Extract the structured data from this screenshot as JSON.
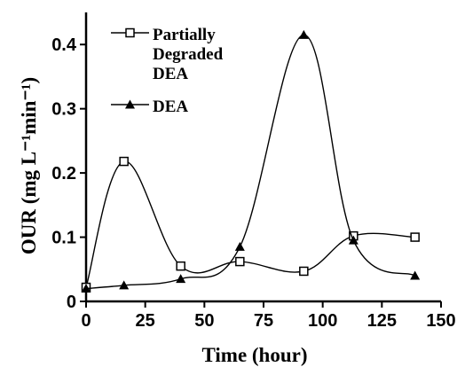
{
  "chart_data": {
    "type": "line",
    "xlabel": "Time (hour)",
    "ylabel": "OUR (mg L⁻¹min⁻¹)",
    "xlim": [
      0,
      150
    ],
    "ylim": [
      0,
      0.45
    ],
    "xticks": [
      0,
      25,
      50,
      75,
      100,
      125,
      150
    ],
    "yticks": [
      0,
      0.1,
      0.2,
      0.3,
      0.4
    ],
    "grid": false,
    "legend_placement": "top-left",
    "series": [
      {
        "name": "Partially Degraded DEA",
        "name_lines": [
          "Partially",
          "Degraded",
          "DEA"
        ],
        "marker": "open-square",
        "x": [
          0,
          16,
          40,
          65,
          92,
          113,
          139
        ],
        "y": [
          0.022,
          0.218,
          0.055,
          0.062,
          0.047,
          0.102,
          0.1
        ]
      },
      {
        "name": "DEA",
        "name_lines": [
          "DEA"
        ],
        "marker": "filled-triangle",
        "x": [
          0,
          16,
          40,
          65,
          92,
          113,
          139
        ],
        "y": [
          0.02,
          0.025,
          0.035,
          0.085,
          0.415,
          0.095,
          0.04
        ]
      }
    ]
  }
}
